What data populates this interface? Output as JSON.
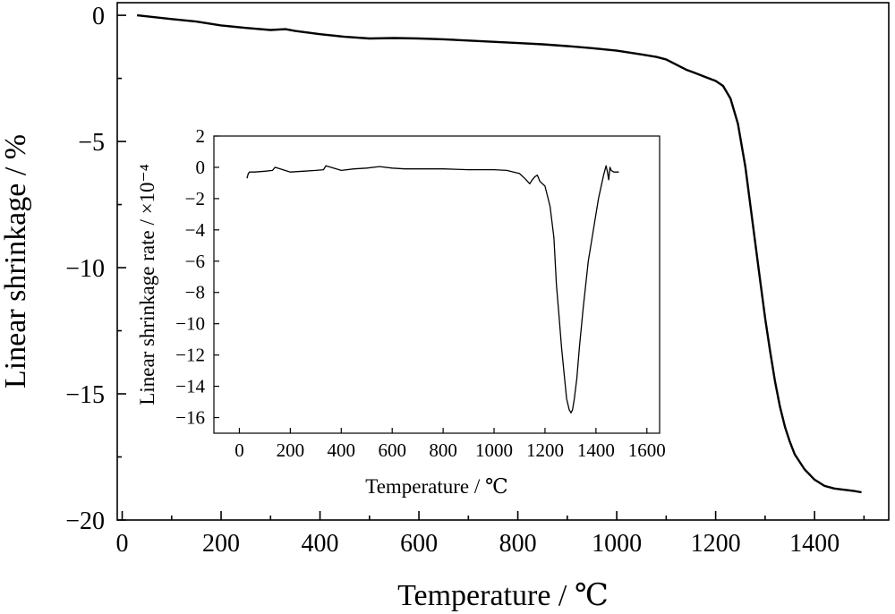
{
  "chart_data": [
    {
      "type": "line",
      "name": "main",
      "xlabel": "Temperature / ℃",
      "ylabel": "Linear shrinkage / %",
      "xlim": [
        -10,
        1550
      ],
      "ylim": [
        -20,
        0.5
      ],
      "x_ticks": [
        0,
        200,
        400,
        600,
        800,
        1000,
        1200,
        1400
      ],
      "y_ticks": [
        0,
        -5,
        -10,
        -15,
        -20
      ],
      "y_tick_labels": [
        "0",
        "−5",
        "−10",
        "−15",
        "−20"
      ],
      "grid": false,
      "legend": "none",
      "series": [
        {
          "x": [
            30,
            100,
            150,
            200,
            250,
            300,
            330,
            350,
            400,
            450,
            500,
            550,
            600,
            650,
            700,
            750,
            800,
            850,
            900,
            950,
            1000,
            1050,
            1080,
            1100,
            1120,
            1140,
            1160,
            1180,
            1200,
            1215,
            1230,
            1245,
            1260,
            1270,
            1280,
            1290,
            1300,
            1310,
            1320,
            1330,
            1340,
            1350,
            1360,
            1380,
            1400,
            1420,
            1440,
            1460,
            1480,
            1495
          ],
          "y": [
            0,
            -0.15,
            -0.25,
            -0.4,
            -0.5,
            -0.58,
            -0.55,
            -0.62,
            -0.75,
            -0.85,
            -0.92,
            -0.9,
            -0.92,
            -0.95,
            -1.0,
            -1.05,
            -1.1,
            -1.15,
            -1.22,
            -1.3,
            -1.4,
            -1.55,
            -1.65,
            -1.75,
            -1.95,
            -2.15,
            -2.3,
            -2.45,
            -2.6,
            -2.8,
            -3.3,
            -4.3,
            -6.0,
            -7.5,
            -9.0,
            -10.5,
            -12.0,
            -13.3,
            -14.5,
            -15.5,
            -16.3,
            -16.9,
            -17.4,
            -18.0,
            -18.4,
            -18.65,
            -18.75,
            -18.8,
            -18.85,
            -18.9
          ]
        }
      ]
    },
    {
      "type": "line",
      "name": "inset",
      "xlabel": "Temperature / ℃",
      "ylabel": "Linear shrinkage rate / ×10⁻⁴",
      "xlim": [
        -100,
        1650
      ],
      "ylim": [
        -17,
        2
      ],
      "x_ticks": [
        0,
        200,
        400,
        600,
        800,
        1000,
        1200,
        1400,
        1600
      ],
      "y_ticks": [
        2,
        0,
        -2,
        -4,
        -6,
        -8,
        -10,
        -12,
        -14,
        -16
      ],
      "y_tick_labels": [
        "2",
        "0",
        "−2",
        "−4",
        "−6",
        "−8",
        "−10",
        "−12",
        "−14",
        "−16"
      ],
      "grid": false,
      "legend": "none",
      "series": [
        {
          "x": [
            30,
            35,
            40,
            60,
            100,
            130,
            140,
            200,
            250,
            300,
            330,
            340,
            400,
            450,
            500,
            550,
            600,
            650,
            700,
            800,
            900,
            1000,
            1050,
            1100,
            1120,
            1140,
            1150,
            1160,
            1170,
            1180,
            1200,
            1220,
            1235,
            1245,
            1255,
            1265,
            1275,
            1285,
            1295,
            1302,
            1308,
            1315,
            1325,
            1335,
            1350,
            1370,
            1390,
            1410,
            1430,
            1440,
            1445,
            1450,
            1455,
            1460,
            1470,
            1490
          ],
          "y": [
            -0.7,
            -0.4,
            -0.3,
            -0.3,
            -0.25,
            -0.2,
            0,
            -0.3,
            -0.25,
            -0.2,
            -0.15,
            0.1,
            -0.2,
            -0.1,
            -0.05,
            0.05,
            -0.05,
            -0.1,
            -0.1,
            -0.1,
            -0.15,
            -0.15,
            -0.2,
            -0.4,
            -0.7,
            -1.05,
            -0.8,
            -0.6,
            -0.5,
            -0.9,
            -1.2,
            -2.5,
            -4.5,
            -7.5,
            -9.5,
            -11.5,
            -13.2,
            -14.8,
            -15.5,
            -15.7,
            -15.5,
            -14.8,
            -13.5,
            -11.5,
            -9.0,
            -6.0,
            -4.0,
            -2.0,
            -0.5,
            0.1,
            -0.3,
            -0.8,
            0,
            -0.2,
            -0.3,
            -0.3
          ]
        }
      ]
    }
  ]
}
